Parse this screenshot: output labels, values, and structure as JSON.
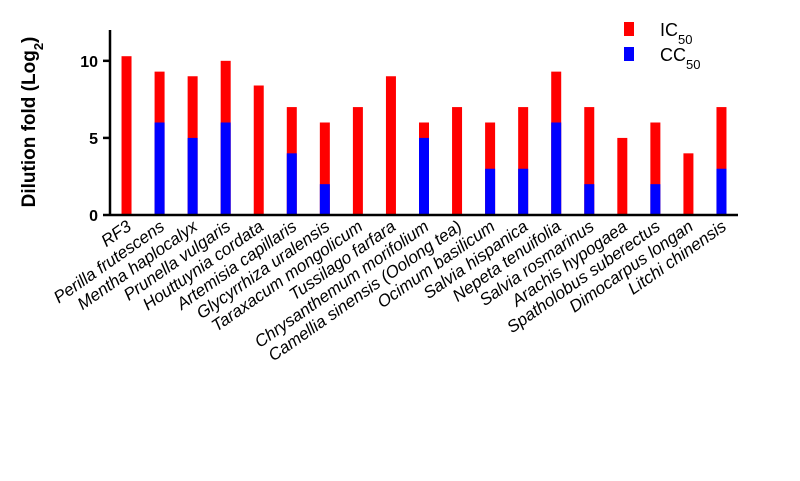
{
  "chart_data": {
    "type": "bar",
    "ylabel": "Dilution fold (Log2)",
    "ylim": [
      0,
      12
    ],
    "yticks": [
      0,
      5,
      10
    ],
    "grid": false,
    "legend_position": "top-right",
    "categories": [
      "RF3",
      "Perilla frutescens",
      "Mentha haplocalyx",
      "Prunella vulgaris",
      "Houttuynia cordata",
      "Artemisia capillaris",
      "Glycyrrhiza uralensis",
      "Taraxacum mongolicum",
      "Tussilago farfara",
      "Chrysanthemum morifolium",
      "Camellia sinensis  (Oolong tea)",
      "Ocimum basilicum",
      "Salvia hispanica",
      "Nepeta tenuifolia",
      "Salvia rosmarinus",
      "Arachis hypogaea",
      "Spatholobus suberectus",
      "Dimocarpus longan",
      "Litchi chinensis"
    ],
    "series": [
      {
        "name": "IC50",
        "color": "#ff0000",
        "values": [
          10.3,
          9.3,
          9.0,
          10.0,
          8.4,
          7.0,
          6.0,
          7.0,
          9.0,
          6.0,
          7.0,
          6.0,
          7.0,
          9.3,
          7.0,
          5.0,
          6.0,
          4.0,
          7.0
        ]
      },
      {
        "name": "CC50",
        "color": "#0000ff",
        "values": [
          0,
          6.0,
          5.0,
          6.0,
          0,
          4.0,
          2.0,
          0,
          0,
          5.0,
          0,
          3.0,
          3.0,
          6.0,
          2.0,
          0,
          2.0,
          0,
          3.0
        ]
      }
    ]
  }
}
